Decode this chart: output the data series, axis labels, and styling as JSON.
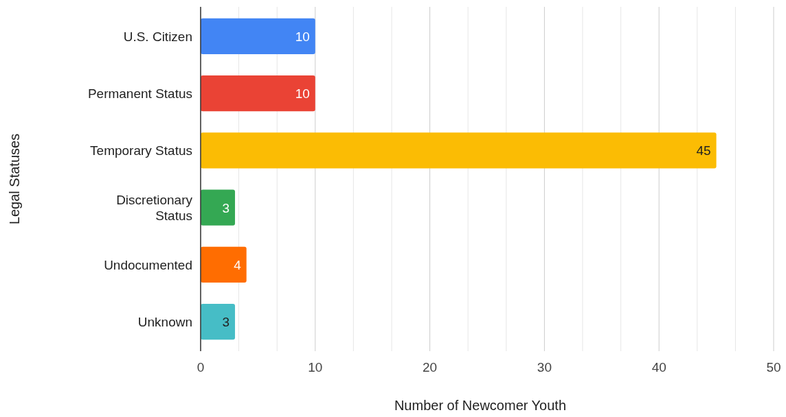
{
  "chart_data": {
    "type": "bar",
    "orientation": "horizontal",
    "xlabel": "Number of Newcomer Youth",
    "ylabel": "Legal Statuses",
    "categories": [
      "U.S. Citizen",
      "Permanent Status",
      "Temporary Status",
      "Discretionary Status",
      "Undocumented",
      "Unknown"
    ],
    "values": [
      10,
      10,
      45,
      3,
      4,
      3
    ],
    "colors": [
      "#4285f4",
      "#ea4335",
      "#fbbc04",
      "#34a853",
      "#ff6d01",
      "#46bdc6"
    ],
    "xlim": [
      0,
      50
    ],
    "xticks": [
      0,
      {
        "value": 3.33,
        "label": null
      },
      {
        "value": 6.67,
        "label": null
      },
      10,
      {
        "value": 13.33,
        "label": null
      },
      {
        "value": 16.67,
        "label": null
      },
      20,
      {
        "value": 23.33,
        "label": null
      },
      {
        "value": 26.67,
        "label": null
      },
      30,
      {
        "value": 33.33,
        "label": null
      },
      {
        "value": 36.67,
        "label": null
      },
      40,
      {
        "value": 43.33,
        "label": null
      },
      {
        "value": 46.67,
        "label": null
      },
      50
    ],
    "grid": true,
    "data_labels": true
  }
}
